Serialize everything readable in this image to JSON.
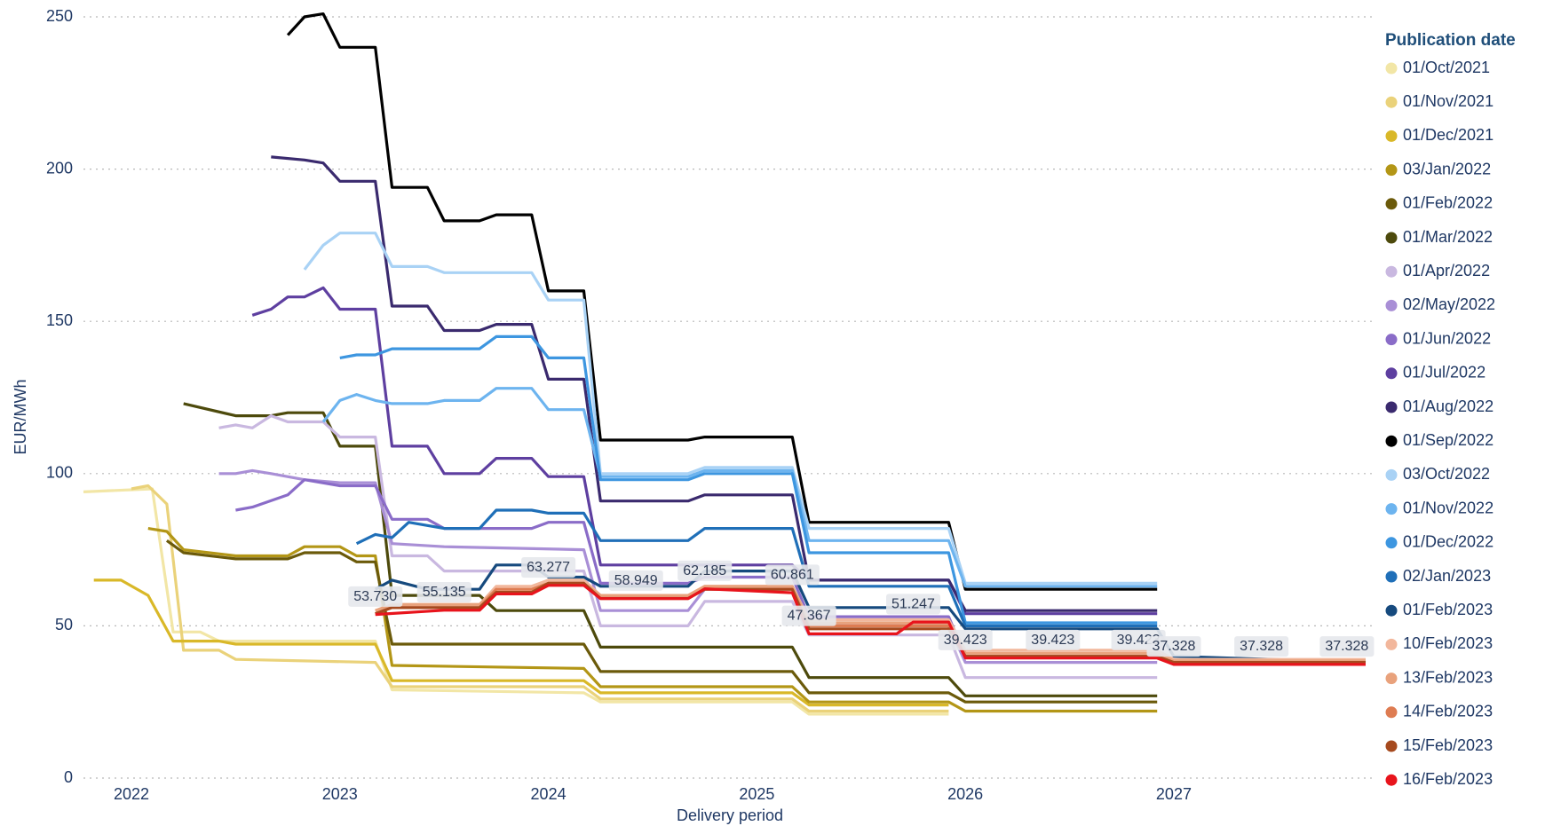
{
  "chart_data": {
    "type": "line",
    "y_label": "EUR/MWh",
    "x_label": "Delivery period",
    "legend_title": "Publication date",
    "legend": "right",
    "grid": true,
    "xlim": [
      2021.77,
      2027.95
    ],
    "xticks": [
      2022,
      2023,
      2024,
      2025,
      2026,
      2027
    ],
    "ylim": [
      0,
      250
    ],
    "yticks": [
      0,
      50,
      100,
      150,
      200,
      250
    ],
    "series": [
      {
        "name": "01/Oct/2021",
        "color": "#f2e6a6",
        "x": [
          2021.77,
          2022.1,
          2022.2,
          2022.33,
          2022.42,
          2023.17,
          2023.25,
          2024.17,
          2024.25,
          2025.17,
          2025.25,
          2025.92
        ],
        "values": [
          94,
          95,
          48,
          48,
          45,
          45,
          29,
          28,
          25,
          25,
          21,
          21
        ]
      },
      {
        "name": "01/Nov/2021",
        "color": "#ead27a",
        "x": [
          2022.0,
          2022.08,
          2022.17,
          2022.25,
          2022.42,
          2022.5,
          2023.17,
          2023.25,
          2024.17,
          2024.25,
          2025.17,
          2025.25,
          2025.92
        ],
        "values": [
          95,
          96,
          90,
          42,
          42,
          39,
          38,
          30,
          30,
          26,
          26,
          22,
          22
        ]
      },
      {
        "name": "01/Dec/2021",
        "color": "#d9b828",
        "x": [
          2021.82,
          2021.95,
          2022.08,
          2022.2,
          2022.42,
          2022.5,
          2023.17,
          2023.25,
          2024.17,
          2024.25,
          2025.17,
          2025.25,
          2025.92
        ],
        "values": [
          65,
          65,
          60,
          45,
          45,
          44,
          44,
          32,
          32,
          28,
          28,
          24,
          24
        ]
      },
      {
        "name": "03/Jan/2022",
        "color": "#b39616",
        "x": [
          2022.08,
          2022.17,
          2022.25,
          2022.5,
          2022.75,
          2022.83,
          2023.0,
          2023.08,
          2023.17,
          2023.25,
          2024.17,
          2024.25,
          2025.17,
          2025.25,
          2025.92,
          2026.0,
          2026.92
        ],
        "values": [
          82,
          81,
          75,
          73,
          73,
          76,
          76,
          73,
          73,
          37,
          36,
          30,
          30,
          25,
          25,
          22,
          22
        ]
      },
      {
        "name": "01/Feb/2022",
        "color": "#6b5a0a",
        "x": [
          2022.17,
          2022.25,
          2022.5,
          2022.75,
          2022.83,
          2023.0,
          2023.08,
          2023.17,
          2023.25,
          2024.17,
          2024.25,
          2025.17,
          2025.25,
          2025.92,
          2026.0,
          2026.92
        ],
        "values": [
          78,
          74,
          72,
          72,
          74,
          74,
          71,
          71,
          44,
          44,
          35,
          35,
          28,
          28,
          25,
          25
        ]
      },
      {
        "name": "01/Mar/2022",
        "color": "#4d4a0c",
        "x": [
          2022.25,
          2022.5,
          2022.67,
          2022.75,
          2022.92,
          2023.0,
          2023.17,
          2023.25,
          2023.67,
          2023.75,
          2024.17,
          2024.25,
          2025.17,
          2025.25,
          2025.92,
          2026.0,
          2026.92
        ],
        "values": [
          123,
          119,
          119,
          120,
          120,
          109,
          109,
          60,
          60,
          55,
          55,
          43,
          43,
          33,
          33,
          27,
          27
        ]
      },
      {
        "name": "01/Apr/2022",
        "color": "#c9b8e0",
        "x": [
          2022.42,
          2022.5,
          2022.58,
          2022.67,
          2022.75,
          2022.92,
          2023.0,
          2023.17,
          2023.25,
          2023.42,
          2023.5,
          2024.17,
          2024.25,
          2024.67,
          2024.75,
          2025.17,
          2025.25,
          2025.92,
          2026.0,
          2026.92
        ],
        "values": [
          115,
          116,
          115,
          119,
          117,
          117,
          112,
          112,
          73,
          73,
          68,
          68,
          50,
          50,
          58,
          58,
          47,
          47,
          33,
          33
        ]
      },
      {
        "name": "02/May/2022",
        "color": "#a98fd6",
        "x": [
          2022.42,
          2022.5,
          2022.58,
          2022.67,
          2022.83,
          2023.0,
          2023.17,
          2023.25,
          2023.5,
          2024.17,
          2024.25,
          2024.67,
          2024.75,
          2025.17,
          2025.25,
          2025.92,
          2026.0,
          2026.92
        ],
        "values": [
          100,
          100,
          101,
          100,
          98,
          97,
          97,
          77,
          76,
          75,
          55,
          55,
          62,
          62,
          50,
          50,
          38,
          38
        ]
      },
      {
        "name": "01/Jun/2022",
        "color": "#8a6cc8",
        "x": [
          2022.5,
          2022.58,
          2022.75,
          2022.83,
          2023.0,
          2023.17,
          2023.25,
          2023.42,
          2023.5,
          2023.92,
          2024.0,
          2024.17,
          2024.25,
          2024.67,
          2024.75,
          2025.17,
          2025.25,
          2025.92,
          2026.0,
          2026.92
        ],
        "values": [
          88,
          89,
          93,
          98,
          96,
          96,
          85,
          85,
          82,
          82,
          84,
          84,
          64,
          64,
          66,
          66,
          53,
          53,
          40,
          40
        ]
      },
      {
        "name": "01/Jul/2022",
        "color": "#5e3fa0",
        "x": [
          2022.58,
          2022.67,
          2022.75,
          2022.83,
          2022.92,
          2023.0,
          2023.17,
          2023.25,
          2023.42,
          2023.5,
          2023.67,
          2023.75,
          2023.92,
          2024.0,
          2024.17,
          2024.25,
          2025.17,
          2025.25,
          2025.92,
          2026.0,
          2026.92
        ],
        "values": [
          152,
          154,
          158,
          158,
          161,
          154,
          154,
          109,
          109,
          100,
          100,
          105,
          105,
          99,
          99,
          70,
          70,
          65,
          65,
          54,
          54
        ]
      },
      {
        "name": "01/Aug/2022",
        "color": "#3a2a6e",
        "x": [
          2022.67,
          2022.83,
          2022.92,
          2023.0,
          2023.17,
          2023.25,
          2023.42,
          2023.5,
          2023.67,
          2023.75,
          2023.92,
          2024.0,
          2024.17,
          2024.25,
          2024.67,
          2024.75,
          2025.17,
          2025.25,
          2025.92,
          2026.0,
          2026.92
        ],
        "values": [
          204,
          203,
          202,
          196,
          196,
          155,
          155,
          147,
          147,
          149,
          149,
          131,
          131,
          91,
          91,
          93,
          93,
          65,
          65,
          55,
          55
        ]
      },
      {
        "name": "01/Sep/2022",
        "color": "#000000",
        "x": [
          2022.75,
          2022.83,
          2022.92,
          2023.0,
          2023.17,
          2023.25,
          2023.42,
          2023.5,
          2023.67,
          2023.75,
          2023.92,
          2024.0,
          2024.17,
          2024.25,
          2024.67,
          2024.75,
          2025.17,
          2025.25,
          2025.92,
          2026.0,
          2026.92
        ],
        "values": [
          244,
          250,
          251,
          240,
          240,
          194,
          194,
          183,
          183,
          185,
          185,
          160,
          160,
          111,
          111,
          112,
          112,
          84,
          84,
          62,
          62
        ]
      },
      {
        "name": "03/Oct/2022",
        "color": "#a9d2f5",
        "x": [
          2022.83,
          2022.92,
          2023.0,
          2023.17,
          2023.25,
          2023.42,
          2023.5,
          2023.92,
          2024.0,
          2024.17,
          2024.25,
          2024.67,
          2024.75,
          2025.17,
          2025.25,
          2025.92,
          2026.0,
          2026.92
        ],
        "values": [
          167,
          175,
          179,
          179,
          168,
          168,
          166,
          166,
          157,
          157,
          100,
          100,
          102,
          102,
          82,
          82,
          64,
          64
        ]
      },
      {
        "name": "01/Nov/2022",
        "color": "#6db4ef",
        "x": [
          2022.92,
          2023.0,
          2023.08,
          2023.17,
          2023.25,
          2023.42,
          2023.5,
          2023.67,
          2023.75,
          2023.92,
          2024.0,
          2024.17,
          2024.25,
          2024.67,
          2024.75,
          2025.17,
          2025.25,
          2025.92,
          2026.0,
          2026.92
        ],
        "values": [
          117,
          124,
          126,
          124,
          123,
          123,
          124,
          124,
          128,
          128,
          121,
          121,
          99,
          99,
          101,
          101,
          78,
          78,
          63,
          63
        ]
      },
      {
        "name": "01/Dec/2022",
        "color": "#3d96e0",
        "x": [
          2023.0,
          2023.08,
          2023.17,
          2023.25,
          2023.67,
          2023.75,
          2023.92,
          2024.0,
          2024.17,
          2024.25,
          2024.67,
          2024.75,
          2025.17,
          2025.25,
          2025.92,
          2026.0,
          2026.92
        ],
        "values": [
          138,
          139,
          139,
          141,
          141,
          145,
          145,
          138,
          138,
          98,
          98,
          100,
          100,
          74,
          74,
          51,
          51
        ]
      },
      {
        "name": "02/Jan/2023",
        "color": "#1f6fb8",
        "x": [
          2023.08,
          2023.17,
          2023.25,
          2023.33,
          2023.5,
          2023.67,
          2023.75,
          2023.92,
          2024.0,
          2024.17,
          2024.25,
          2024.67,
          2024.75,
          2025.17,
          2025.25,
          2025.92,
          2026.0,
          2026.92
        ],
        "values": [
          77,
          80,
          79,
          84,
          82,
          82,
          88,
          88,
          87,
          87,
          78,
          78,
          82,
          82,
          63,
          63,
          50,
          50
        ]
      },
      {
        "name": "01/Feb/2023",
        "color": "#164a7e",
        "x": [
          2023.17,
          2023.25,
          2023.42,
          2023.67,
          2023.75,
          2023.92,
          2024.0,
          2024.17,
          2024.25,
          2024.67,
          2024.75,
          2025.17,
          2025.25,
          2025.92,
          2026.0,
          2026.92,
          2027.0,
          2027.92
        ],
        "values": [
          62,
          65,
          62,
          62,
          70,
          70,
          66,
          66,
          63,
          63,
          68,
          68,
          56,
          56,
          49,
          49,
          40,
          38
        ]
      },
      {
        "name": "10/Feb/2023",
        "color": "#f2b79c",
        "x": [
          2023.17,
          2023.25,
          2023.67,
          2023.75,
          2023.92,
          2024.0,
          2024.17,
          2024.25,
          2024.67,
          2024.75,
          2025.17,
          2025.25,
          2025.92,
          2026.0,
          2026.92,
          2027.0,
          2027.92
        ],
        "values": [
          55,
          57,
          57,
          63,
          63,
          65,
          65,
          60,
          60,
          63,
          63,
          52,
          52,
          42,
          42,
          39,
          39
        ]
      },
      {
        "name": "13/Feb/2023",
        "color": "#e9a27c",
        "x": [
          2023.17,
          2023.25,
          2023.67,
          2023.75,
          2023.92,
          2024.0,
          2024.17,
          2024.25,
          2024.67,
          2024.75,
          2025.17,
          2025.25,
          2025.92,
          2026.0,
          2026.92,
          2027.0,
          2027.92
        ],
        "values": [
          55,
          57,
          57,
          62,
          62,
          64,
          64,
          60,
          60,
          63,
          63,
          51,
          51,
          41,
          41,
          38.5,
          38.5
        ]
      },
      {
        "name": "14/Feb/2023",
        "color": "#de7c52",
        "x": [
          2023.17,
          2023.25,
          2023.67,
          2023.75,
          2023.92,
          2024.0,
          2024.17,
          2024.25,
          2024.67,
          2024.75,
          2025.17,
          2025.25,
          2025.92,
          2026.0,
          2026.92,
          2027.0,
          2027.92
        ],
        "values": [
          54,
          56,
          56,
          62,
          62,
          64,
          64,
          59,
          59,
          62,
          62,
          50,
          50,
          40,
          40,
          38,
          38
        ]
      },
      {
        "name": "15/Feb/2023",
        "color": "#a64a1e",
        "x": [
          2023.17,
          2023.25,
          2023.67,
          2023.75,
          2023.92,
          2024.0,
          2024.17,
          2024.25,
          2024.67,
          2024.75,
          2025.17,
          2025.25,
          2025.92,
          2026.0,
          2026.92,
          2027.0,
          2027.92
        ],
        "values": [
          54,
          56,
          56,
          61,
          61,
          64,
          64,
          59,
          59,
          62,
          62,
          49,
          49,
          40,
          40,
          38,
          38
        ]
      },
      {
        "name": "16/Feb/2023",
        "color": "#e8141c",
        "x": [
          2023.17,
          2023.5,
          2023.67,
          2023.75,
          2023.92,
          2024.0,
          2024.17,
          2024.25,
          2024.42,
          2024.67,
          2024.75,
          2025.17,
          2025.25,
          2025.67,
          2025.75,
          2025.92,
          2026.0,
          2026.42,
          2026.83,
          2026.92,
          2027.0,
          2027.42,
          2027.83,
          2027.92
        ],
        "values": [
          53.73,
          55.135,
          55.135,
          60.5,
          60.5,
          63.277,
          63.277,
          58.949,
          58.949,
          58.949,
          62.185,
          60.861,
          47.367,
          47.367,
          51.247,
          51.247,
          39.423,
          39.423,
          39.423,
          39.423,
          37.328,
          37.328,
          37.328,
          37.328
        ],
        "value_labels": [
          "53.730",
          "55.135",
          null,
          null,
          null,
          "63.277",
          null,
          null,
          "58.949",
          null,
          "62.185",
          "60.861",
          "47.367",
          null,
          "51.247",
          null,
          "39.423",
          "39.423",
          "39.423",
          null,
          "37.328",
          "37.328",
          "37.328",
          null
        ]
      }
    ]
  }
}
